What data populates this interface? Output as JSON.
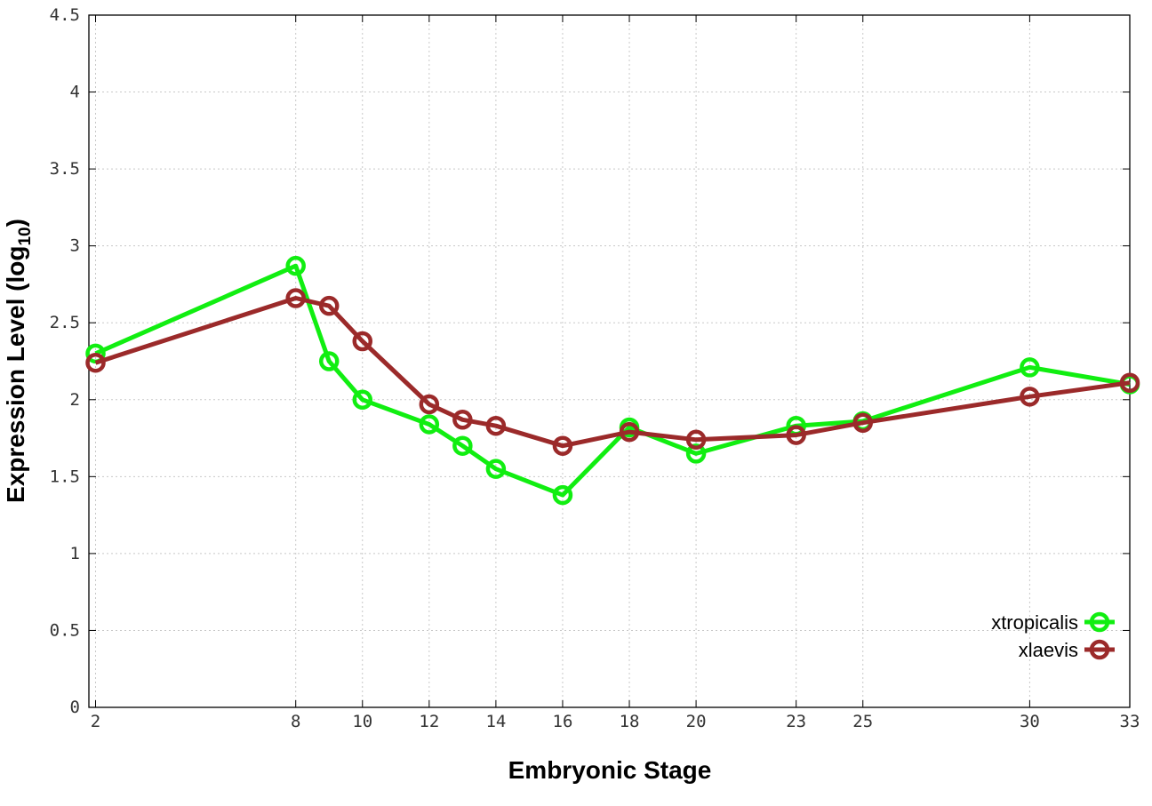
{
  "chart_data": {
    "type": "line",
    "xlabel": "Embryonic Stage",
    "ylabel_main": "Expression Level (log",
    "ylabel_sub": "10",
    "ylabel_close": ")",
    "xlim": [
      1.8,
      33
    ],
    "ylim": [
      0,
      4.5
    ],
    "xticks": [
      2,
      8,
      10,
      12,
      14,
      16,
      18,
      20,
      23,
      25,
      30,
      33
    ],
    "yticks": [
      0,
      0.5,
      1,
      1.5,
      2,
      2.5,
      3,
      3.5,
      4,
      4.5
    ],
    "ytick_labels": [
      "0",
      "0.5",
      "1",
      "1.5",
      "2",
      "2.5",
      "3",
      "3.5",
      "4",
      "4.5"
    ],
    "grid": true,
    "legend_position": "bottom-right",
    "x": [
      2,
      8,
      9,
      10,
      12,
      13,
      14,
      16,
      18,
      20,
      23,
      25,
      30,
      33
    ],
    "series": [
      {
        "name": "xtropicalis",
        "color": "#11ee11",
        "values": [
          2.3,
          2.87,
          2.25,
          2.0,
          1.84,
          1.7,
          1.55,
          1.38,
          1.82,
          1.65,
          1.83,
          1.86,
          2.21,
          2.1
        ]
      },
      {
        "name": "xlaevis",
        "color": "#9b2a2a",
        "values": [
          2.24,
          2.66,
          2.61,
          2.38,
          1.97,
          1.87,
          1.83,
          1.7,
          1.79,
          1.74,
          1.77,
          1.85,
          2.02,
          2.11
        ]
      }
    ]
  }
}
